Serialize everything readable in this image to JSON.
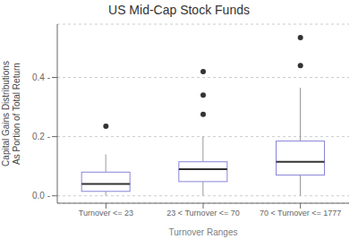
{
  "chart_data": {
    "type": "box",
    "title": "US Mid-Cap Stock Funds",
    "xlabel": "Turnover Ranges",
    "ylabel": "Capital Gains Distributions\nAs Portion of Total Return",
    "categories": [
      "Turnover <= 23",
      "23 < Turnover <= 70",
      "70 < Turnover <= 1777"
    ],
    "boxes": [
      {
        "whisker_low": 0.0,
        "q1": 0.015,
        "median": 0.04,
        "q3": 0.08,
        "whisker_high": 0.14,
        "outliers": [
          0.235
        ]
      },
      {
        "whisker_low": 0.0,
        "q1": 0.048,
        "median": 0.09,
        "q3": 0.115,
        "whisker_high": 0.2,
        "outliers": [
          0.275,
          0.34,
          0.42
        ]
      },
      {
        "whisker_low": 0.0,
        "q1": 0.07,
        "median": 0.115,
        "q3": 0.185,
        "whisker_high": 0.365,
        "outliers": [
          0.44,
          0.535
        ]
      }
    ],
    "ylim": [
      -0.025,
      0.58
    ],
    "yticks": [
      {
        "value": 0.0,
        "label": "0.0 -"
      },
      {
        "value": 0.2,
        "label": "0.2 -"
      },
      {
        "value": 0.4,
        "label": "0.4 -"
      }
    ],
    "grid": true
  }
}
